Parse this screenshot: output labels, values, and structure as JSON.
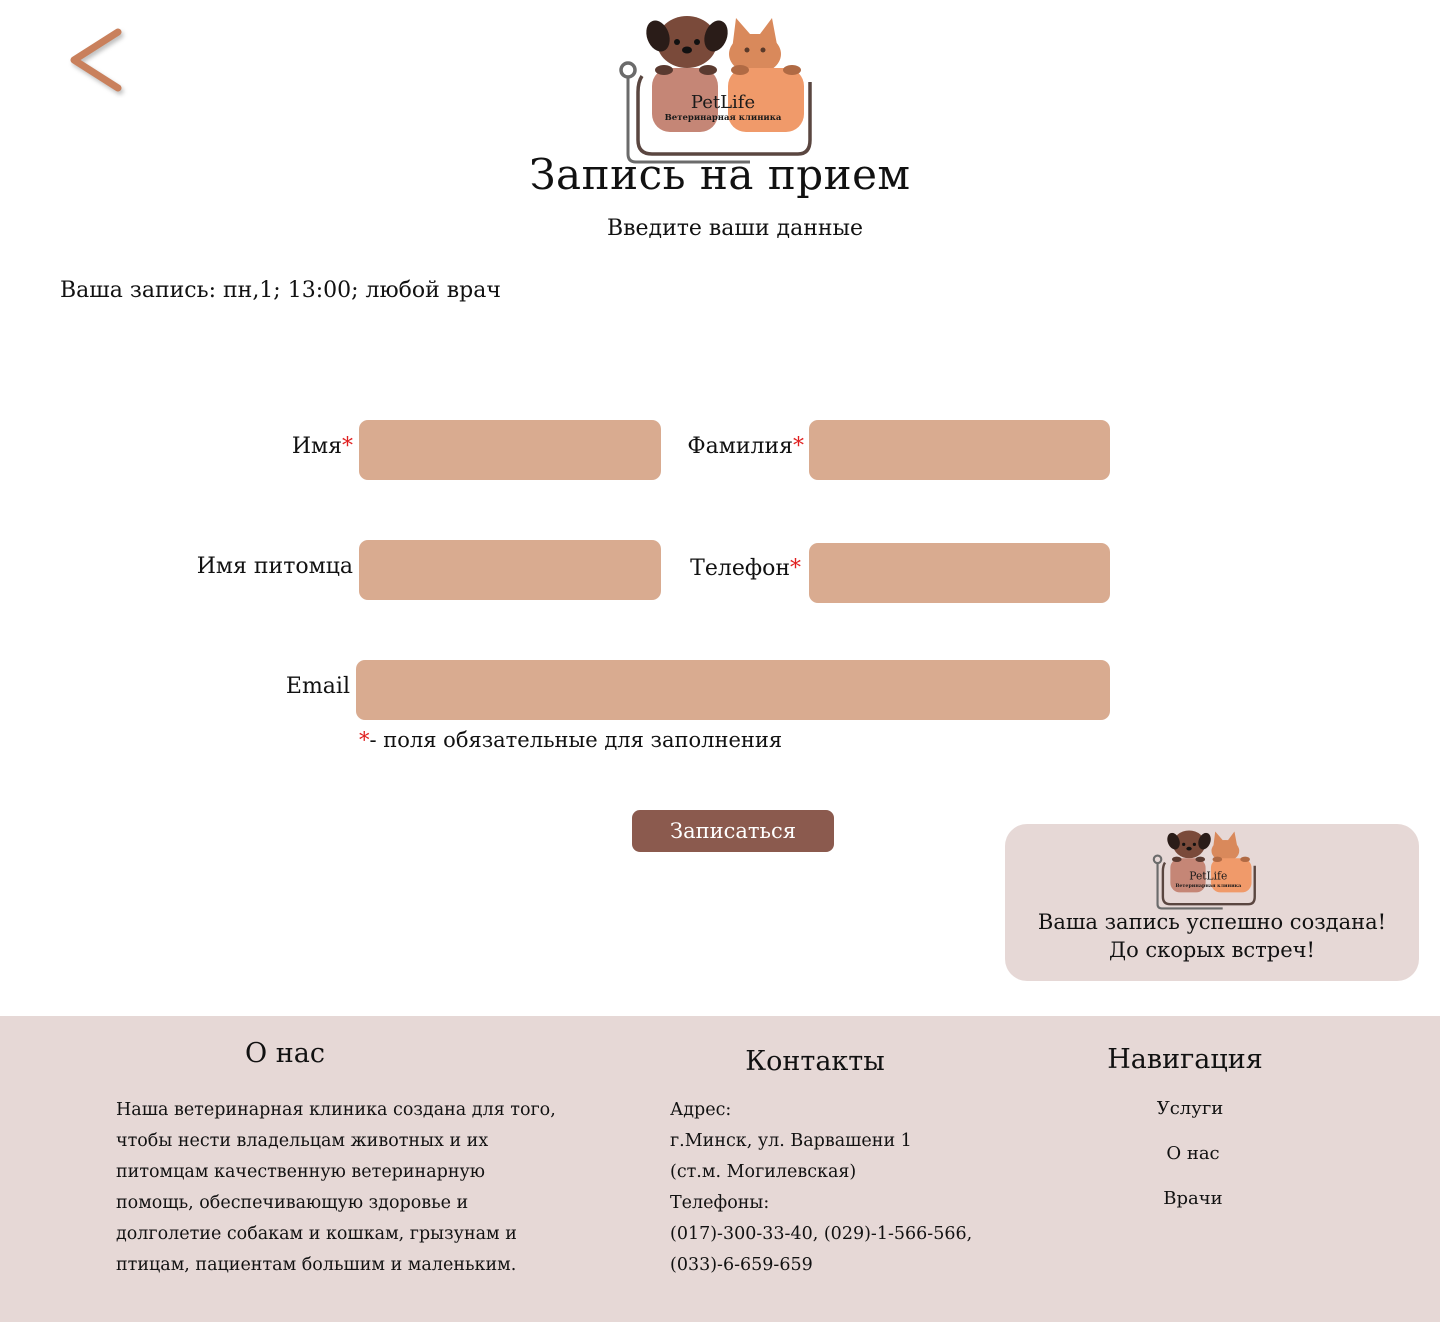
{
  "header": {
    "back_icon": "chevron-left-icon",
    "logo": {
      "brand": "PetLife",
      "tagline": "Ветеринарная клиника"
    }
  },
  "page": {
    "title": "Запись на прием",
    "subtitle": "Введите ваши данные",
    "booking_info": "Ваша запись: пн,1; 13:00; любой врач"
  },
  "form": {
    "first_name": {
      "label": "Имя",
      "required": "*",
      "value": ""
    },
    "last_name": {
      "label": "Фамилия",
      "required": "*",
      "value": ""
    },
    "pet_name": {
      "label": "Имя питомца",
      "value": ""
    },
    "phone": {
      "label": "Телефон",
      "required": "*",
      "value": ""
    },
    "email": {
      "label": "Email",
      "value": ""
    },
    "required_note_mark": "*",
    "required_note": "- поля обязательные для заполнения",
    "submit_label": "Записаться"
  },
  "toast": {
    "line1": "Ваша запись успешно создана!",
    "line2": "До скорых встреч!"
  },
  "footer": {
    "about": {
      "title": "О нас",
      "lines": [
        "Наша ветеринарная клиника создана для того,",
        "чтобы нести владельцам животных и их",
        "питомцам качественную ветеринарную",
        "помощь, обеспечивающую здоровье и",
        "долголетие собакам и кошкам, грызунам и",
        "птицам, пациентам большим и маленьким."
      ]
    },
    "contacts": {
      "title": "Контакты",
      "lines": [
        "Адрес:",
        "г.Минск, ул. Варвашени 1",
        "(ст.м. Могилевская)",
        "Телефоны:",
        "(017)-300-33-40, (029)-1-566-566,",
        "(033)-6-659-659"
      ]
    },
    "navigation": {
      "title": "Навигация",
      "items": [
        "Услуги",
        "О нас",
        "Врачи"
      ]
    }
  },
  "colors": {
    "accent_back": "#c9805c",
    "field_bg": "#d9ab90",
    "button_bg": "#8b5a4e",
    "footer_bg": "#e6d8d6",
    "required": "#e02020"
  }
}
